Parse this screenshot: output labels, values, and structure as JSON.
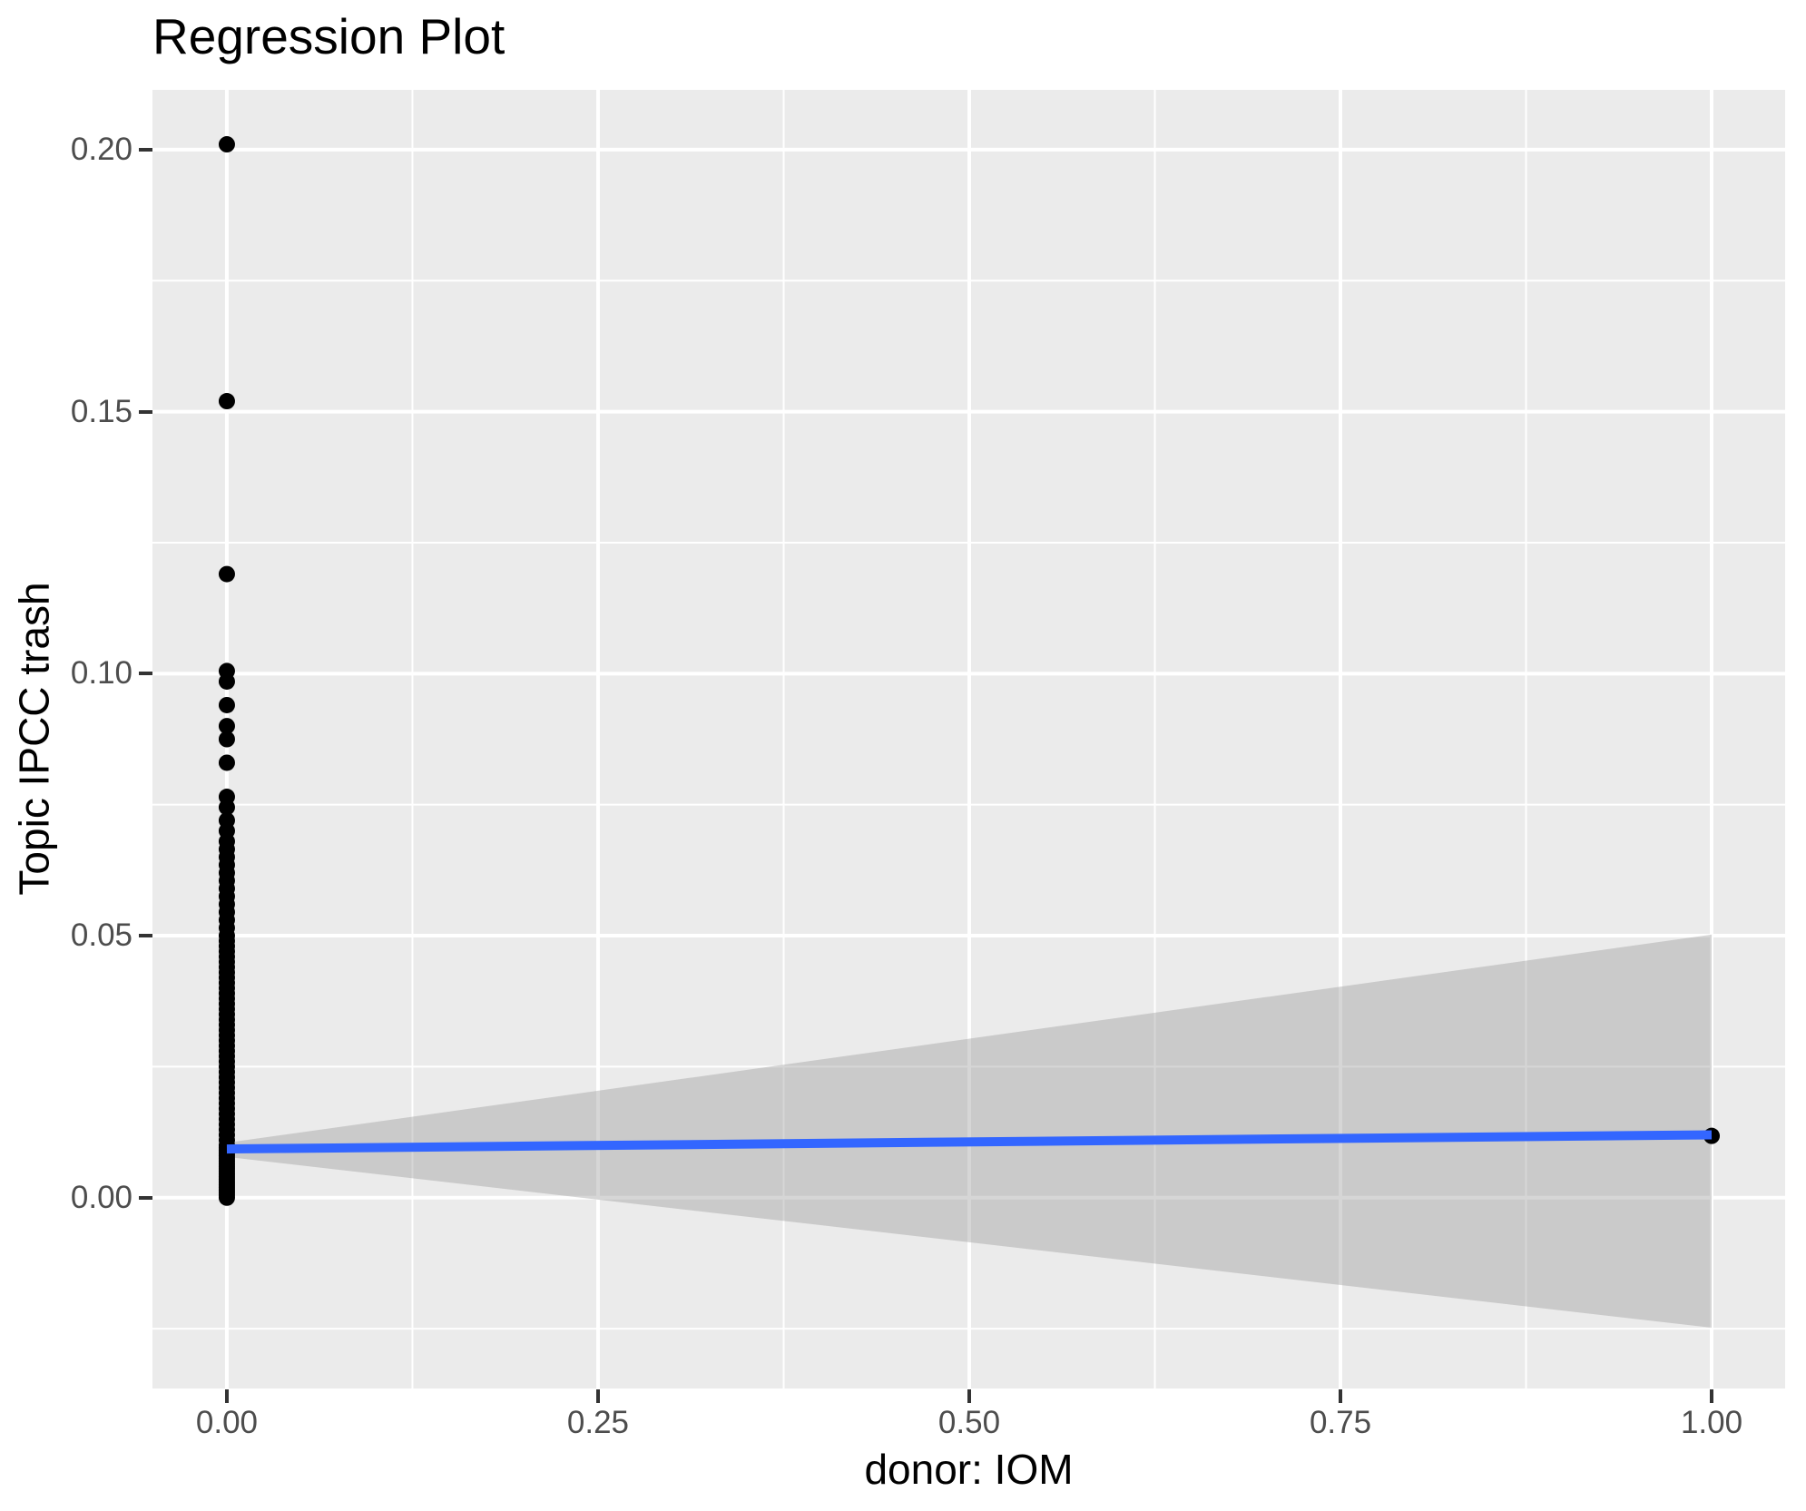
{
  "title": "Regression Plot",
  "axes": {
    "x": {
      "label": "donor: IOM",
      "ticks": [
        "0.00",
        "0.25",
        "0.50",
        "0.75",
        "1.00"
      ],
      "tick_values": [
        0,
        0.25,
        0.5,
        0.75,
        1.0
      ],
      "minor_values": [
        0.125,
        0.375,
        0.625,
        0.875
      ]
    },
    "y": {
      "label": "Topic IPCC trash",
      "ticks": [
        "0.00",
        "0.05",
        "0.10",
        "0.15",
        "0.20"
      ],
      "tick_values": [
        0,
        0.05,
        0.1,
        0.15,
        0.2
      ],
      "minor_values": [
        -0.025,
        0.025,
        0.075,
        0.125,
        0.175
      ]
    }
  },
  "colors": {
    "background": "#FFFFFF",
    "panel_background": "#EBEBEB",
    "grid": "#FFFFFF",
    "point": "#000000",
    "regression_line": "#3366FF",
    "band_fill": "#999999",
    "band_opacity": 0.4,
    "tick_text": "#4D4D4D",
    "tick_mark": "#333333",
    "title_text": "#000000"
  },
  "chart_data": {
    "type": "scatter",
    "title": "Regression Plot",
    "xlabel": "donor: IOM",
    "ylabel": "Topic IPCC trash",
    "xlim": [
      -0.0501,
      1.0495
    ],
    "ylim": [
      -0.0364,
      0.2114
    ],
    "grid": "on",
    "legend": "none",
    "series": [
      {
        "name": "observations at donor=0",
        "x": 0,
        "y": [
          0.0,
          0.0005,
          0.001,
          0.0015,
          0.002,
          0.0025,
          0.003,
          0.0035,
          0.004,
          0.0045,
          0.005,
          0.0055,
          0.006,
          0.0065,
          0.007,
          0.0075,
          0.008,
          0.0085,
          0.009,
          0.0095,
          0.01,
          0.011,
          0.012,
          0.013,
          0.014,
          0.015,
          0.016,
          0.017,
          0.018,
          0.019,
          0.02,
          0.021,
          0.022,
          0.023,
          0.024,
          0.025,
          0.026,
          0.027,
          0.028,
          0.029,
          0.03,
          0.031,
          0.032,
          0.033,
          0.034,
          0.035,
          0.036,
          0.037,
          0.038,
          0.039,
          0.04,
          0.041,
          0.042,
          0.043,
          0.044,
          0.045,
          0.046,
          0.047,
          0.048,
          0.049,
          0.05,
          0.0515,
          0.053,
          0.0545,
          0.056,
          0.0575,
          0.059,
          0.0605,
          0.062,
          0.0635,
          0.065,
          0.0665,
          0.068,
          0.07,
          0.072,
          0.0745,
          0.0765,
          0.083,
          0.0875,
          0.09,
          0.094,
          0.0985,
          0.1005,
          0.119,
          0.152,
          0.201
        ]
      },
      {
        "name": "observation at donor=1",
        "x": 1,
        "y": [
          0.0118
        ]
      }
    ],
    "regression_line": {
      "x": [
        0,
        1
      ],
      "y": [
        0.0093,
        0.012
      ]
    },
    "confidence_band": {
      "x": [
        0,
        1
      ],
      "upper": [
        0.0105,
        0.0502
      ],
      "lower": [
        0.0078,
        -0.0248
      ]
    }
  }
}
